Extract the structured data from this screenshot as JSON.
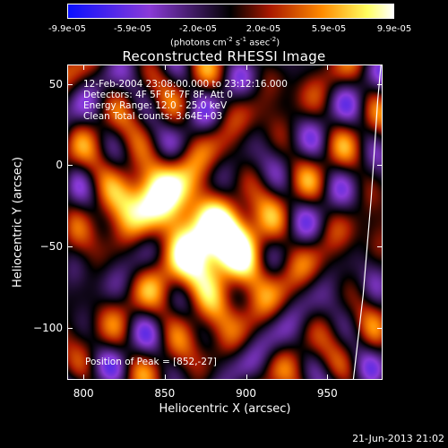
{
  "colorbar": {
    "tick_labels": [
      "-9.9e-05",
      "-5.9e-05",
      "-2.0e-05",
      "2.0e-05",
      "5.9e-05",
      "9.9e-05"
    ],
    "units_text": "(photons cm",
    "units_exp1": "-2",
    "units_s": " s",
    "units_exp2": "-1",
    "units_asec": " asec",
    "units_exp3": "-2",
    "units_close": ")"
  },
  "chart_data": {
    "type": "heatmap",
    "title": "Reconstructed RHESSI Image",
    "xlabel": "Heliocentric X (arcsec)",
    "ylabel": "Heliocentric Y (arcsec)",
    "xlim": [
      790,
      984
    ],
    "ylim": [
      -132,
      62
    ],
    "x_ticks": [
      800,
      850,
      900,
      950
    ],
    "y_ticks": [
      50,
      0,
      -50,
      -100
    ],
    "colorbar_range": [
      -9.9e-05,
      9.9e-05
    ],
    "colormap": [
      "#0a10ff",
      "#8a3ad8",
      "#000000",
      "#a81800",
      "#ff8a00",
      "#ffff60",
      "#ffffff"
    ],
    "peak": [
      852,
      -27
    ],
    "bright_regions": [
      {
        "center": [
          880,
          -45
        ],
        "level": 1.0
      },
      {
        "center": [
          855,
          -25
        ],
        "level": 0.9
      },
      {
        "center": [
          895,
          -55
        ],
        "level": 0.8
      },
      {
        "center": [
          830,
          -15
        ],
        "level": 0.7
      },
      {
        "center": [
          870,
          -80
        ],
        "level": 0.55
      }
    ],
    "limb_points": [
      [
        966,
        -132
      ],
      [
        972,
        -80
      ],
      [
        977,
        -20
      ],
      [
        981,
        40
      ],
      [
        983,
        62
      ]
    ],
    "info_lines": [
      "12-Feb-2004 23:08:00.000 to 23:12:16.000",
      "Detectors: 4F 5F 6F 7F 8F, Att 0",
      "Energy Range: 12.0 - 25.0 keV",
      "Clean    Total counts: 3.64E+03"
    ],
    "peak_label": "Position of Peak = [852,-27]"
  },
  "timestamp": "21-Jun-2013 21:02"
}
